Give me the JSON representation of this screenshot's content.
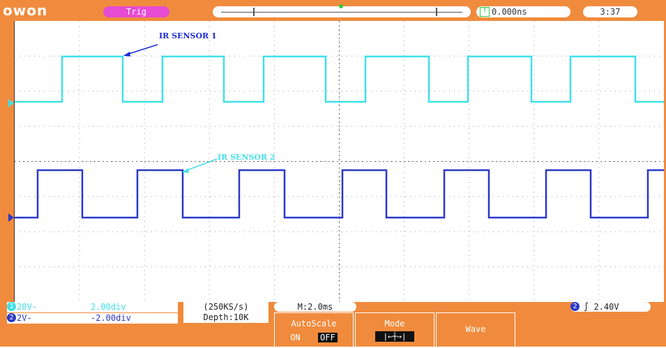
{
  "topbar": {
    "brand": "owon",
    "trigger_status": "Trig",
    "trigger_offset": "0.000ns",
    "clock": "3:37"
  },
  "screen": {
    "labels": [
      {
        "text": "IR SENSOR 1",
        "color": "#1a2bd6"
      },
      {
        "text": "IR SENSOR 2",
        "color": "#46e0e6"
      }
    ],
    "trace1_color": "#3fe0e8",
    "trace2_color": "#2a38c8"
  },
  "bottom": {
    "ch1_coupling": "20V-",
    "ch1_scale": "2.00div",
    "ch2_coupling": "2V-",
    "ch2_scale": "-2.00div",
    "sample_rate": "(250KS/s)",
    "depth": "Depth:10K",
    "timebase": "M:2.0ms",
    "trigger_level": "2.40V",
    "softkeys": {
      "autoscale_label": "AutoScale",
      "autoscale_on": "ON",
      "autoscale_off": "OFF",
      "mode_label": "Mode",
      "wave_label": "Wave"
    }
  }
}
